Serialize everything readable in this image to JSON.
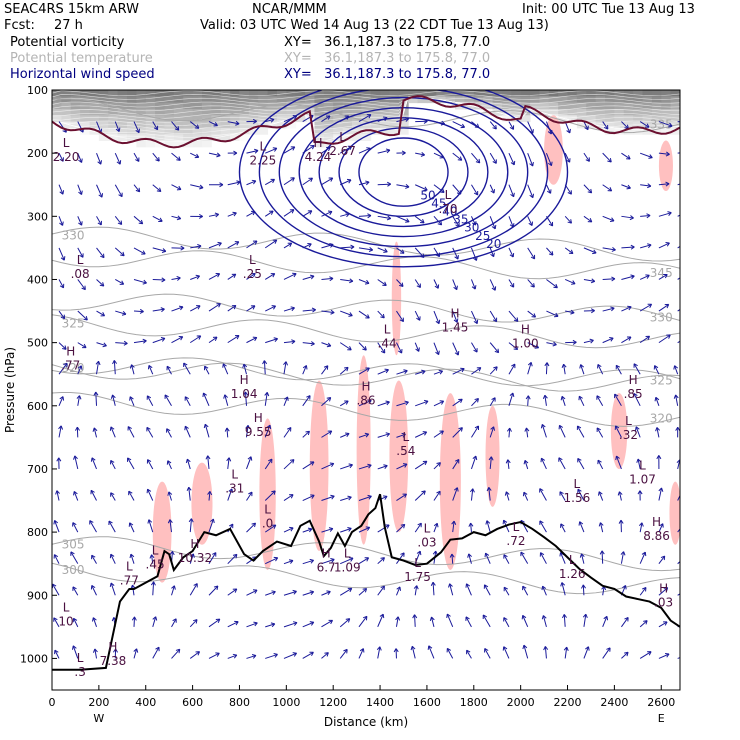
{
  "header": {
    "model": "SEAC4RS 15km ARW",
    "org": "NCAR/MMM",
    "init": "Init: 00 UTC Tue 13 Aug 13",
    "fcst_label": "Fcst:",
    "fcst_value": "27 h",
    "valid": "Valid: 03 UTC Wed 14 Aug 13 (22 CDT Tue 13 Aug 13)"
  },
  "fields": [
    {
      "name": "Potential vorticity",
      "xy": "XY=   36.1,187.3 to 175.8, 77.0",
      "color": "#000000"
    },
    {
      "name": "Potential temperature",
      "xy": "XY=   36.1,187.3 to 175.8, 77.0",
      "color": "#b4b4b4"
    },
    {
      "name": "Horizontal wind speed",
      "xy": "XY=   36.1,187.3 to 175.8, 77.0",
      "color": "#000080"
    }
  ],
  "colors": {
    "pv_shading": "#555555",
    "theta": "#a8a8a8",
    "wind": "#1a1a9a",
    "tropopause": "#6b1030",
    "cloud": "#ffc0c0",
    "terrain": "#000000"
  },
  "chart_data": {
    "type": "cross-section",
    "xlabel": "Distance (km)",
    "ylabel": "Pressure (hPa)",
    "xlim": [
      0,
      2680
    ],
    "ylim": [
      1050,
      100
    ],
    "x_ticks": [
      0,
      200,
      400,
      600,
      800,
      1000,
      1200,
      1400,
      1600,
      1800,
      2000,
      2200,
      2400,
      2600
    ],
    "y_ticks": [
      100,
      200,
      300,
      400,
      500,
      600,
      700,
      800,
      900,
      1000
    ],
    "endpoint_labels": {
      "left": "W",
      "right": "E"
    },
    "terrain_surface": {
      "x": [
        0,
        120,
        230,
        250,
        290,
        330,
        350,
        400,
        450,
        480,
        500,
        520,
        560,
        600,
        650,
        700,
        760,
        820,
        860,
        900,
        960,
        1020,
        1060,
        1100,
        1140,
        1160,
        1190,
        1220,
        1250,
        1280,
        1320,
        1350,
        1380,
        1400,
        1420,
        1450,
        1500,
        1550,
        1600,
        1660,
        1700,
        1750,
        1800,
        1850,
        1900,
        1950,
        2000,
        2050,
        2100,
        2150,
        2200,
        2250,
        2300,
        2350,
        2400,
        2450,
        2500,
        2550,
        2600,
        2640,
        2680
      ],
      "p": [
        1018,
        1018,
        1015,
        980,
        910,
        890,
        890,
        880,
        870,
        830,
        835,
        860,
        840,
        830,
        800,
        805,
        795,
        835,
        845,
        830,
        815,
        822,
        790,
        782,
        815,
        838,
        825,
        802,
        822,
        800,
        790,
        772,
        762,
        740,
        792,
        840,
        845,
        852,
        850,
        832,
        812,
        810,
        800,
        805,
        795,
        788,
        784,
        795,
        808,
        822,
        840,
        858,
        872,
        885,
        890,
        902,
        906,
        910,
        920,
        940,
        950
      ]
    },
    "theta_contours": [
      {
        "label": "330",
        "p_left": 330
      },
      {
        "label": "325",
        "p_left": 470
      },
      {
        "label": "320",
        "p_left": 540
      },
      {
        "label": "305",
        "p_left": 820
      },
      {
        "label": "300",
        "p_left": 860
      },
      {
        "label": "335",
        "p_right": 155
      },
      {
        "label": "345",
        "p_right": 390
      },
      {
        "label": "330",
        "p_right": 460
      },
      {
        "label": "325",
        "p_right": 560
      },
      {
        "label": "320",
        "p_right": 620
      }
    ],
    "wind_speed_contours": [
      "20",
      "25",
      "30",
      "35",
      "40",
      "45",
      "50"
    ],
    "pv_extrema": [
      {
        "type": "L",
        "value": "2.20",
        "x": 60,
        "p": 200
      },
      {
        "type": "L",
        "value": ".08",
        "x": 120,
        "p": 385
      },
      {
        "type": "L",
        "value": ".25",
        "x": 855,
        "p": 385
      },
      {
        "type": "L",
        "value": "2.25",
        "x": 900,
        "p": 205
      },
      {
        "type": "H",
        "value": "4.24",
        "x": 1135,
        "p": 200
      },
      {
        "type": "L",
        "value": "2.67",
        "x": 1240,
        "p": 190
      },
      {
        "type": "L",
        "value": ".70",
        "x": 1690,
        "p": 282
      },
      {
        "type": "H",
        "value": "1.45",
        "x": 1720,
        "p": 470
      },
      {
        "type": "L",
        "value": ".44",
        "x": 1430,
        "p": 495
      },
      {
        "type": "H",
        "value": "1.00",
        "x": 2020,
        "p": 495
      },
      {
        "type": "H",
        "value": ".77",
        "x": 80,
        "p": 530
      },
      {
        "type": "H",
        "value": "1.04",
        "x": 820,
        "p": 575
      },
      {
        "type": "H",
        "value": ".86",
        "x": 1340,
        "p": 585
      },
      {
        "type": "H",
        "value": "9.55",
        "x": 880,
        "p": 635
      },
      {
        "type": "H",
        "value": ".85",
        "x": 2480,
        "p": 575
      },
      {
        "type": "L",
        "value": ".32",
        "x": 2460,
        "p": 640
      },
      {
        "type": "L",
        "value": ".54",
        "x": 1510,
        "p": 665
      },
      {
        "type": "L",
        "value": "1.56",
        "x": 2240,
        "p": 740
      },
      {
        "type": "L",
        "value": "1.07",
        "x": 2520,
        "p": 710
      },
      {
        "type": "L",
        "value": ".31",
        "x": 780,
        "p": 725
      },
      {
        "type": "L",
        "value": ".0",
        "x": 920,
        "p": 780
      },
      {
        "type": "H",
        "value": "8.86",
        "x": 2580,
        "p": 800
      },
      {
        "type": "L",
        "value": ".03",
        "x": 1600,
        "p": 810
      },
      {
        "type": "L",
        "value": ".72",
        "x": 1980,
        "p": 808
      },
      {
        "type": "H",
        "value": "10.32",
        "x": 610,
        "p": 835
      },
      {
        "type": "L",
        "value": ".45",
        "x": 440,
        "p": 845
      },
      {
        "type": "L",
        "value": ".77",
        "x": 330,
        "p": 870
      },
      {
        "type": "L",
        "value": "1.26",
        "x": 2220,
        "p": 860
      },
      {
        "type": "H",
        "value": "6.7",
        "x": 1170,
        "p": 850
      },
      {
        "type": "L",
        "value": "1.09",
        "x": 1260,
        "p": 850
      },
      {
        "type": "L",
        "value": "1.75",
        "x": 1560,
        "p": 865
      },
      {
        "type": "L",
        "value": "10",
        "x": 60,
        "p": 935
      },
      {
        "type": "L",
        "value": ".3",
        "x": 120,
        "p": 1015
      },
      {
        "type": "H",
        "value": "7.38",
        "x": 260,
        "p": 998
      },
      {
        "type": "H",
        "value": ".03",
        "x": 2610,
        "p": 905
      }
    ]
  }
}
